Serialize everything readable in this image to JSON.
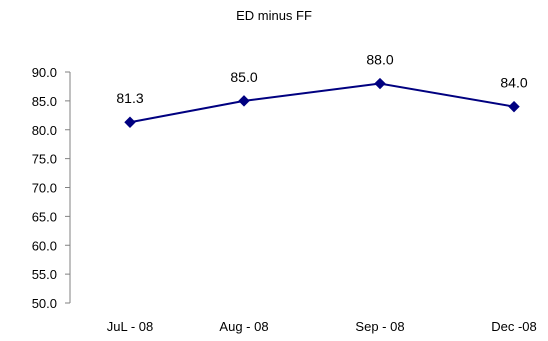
{
  "chart_data": {
    "type": "line",
    "title": "ED minus FF",
    "xlabel": "",
    "ylabel": "",
    "categories": [
      "JuL - 08",
      "Aug - 08",
      "Sep - 08",
      "Dec -08"
    ],
    "series": [
      {
        "values": [
          81.3,
          85.0,
          88.0,
          84.0
        ],
        "labels": [
          "81.3",
          "85.0",
          "88.0",
          "84.0"
        ]
      }
    ],
    "ylim": [
      50.0,
      90.0
    ],
    "yticks": [
      "50.0",
      "55.0",
      "60.0",
      "65.0",
      "70.0",
      "75.0",
      "80.0",
      "85.0",
      "90.0"
    ],
    "grid": false,
    "legend": "none",
    "marker": "diamond",
    "line_color": "#000080"
  }
}
